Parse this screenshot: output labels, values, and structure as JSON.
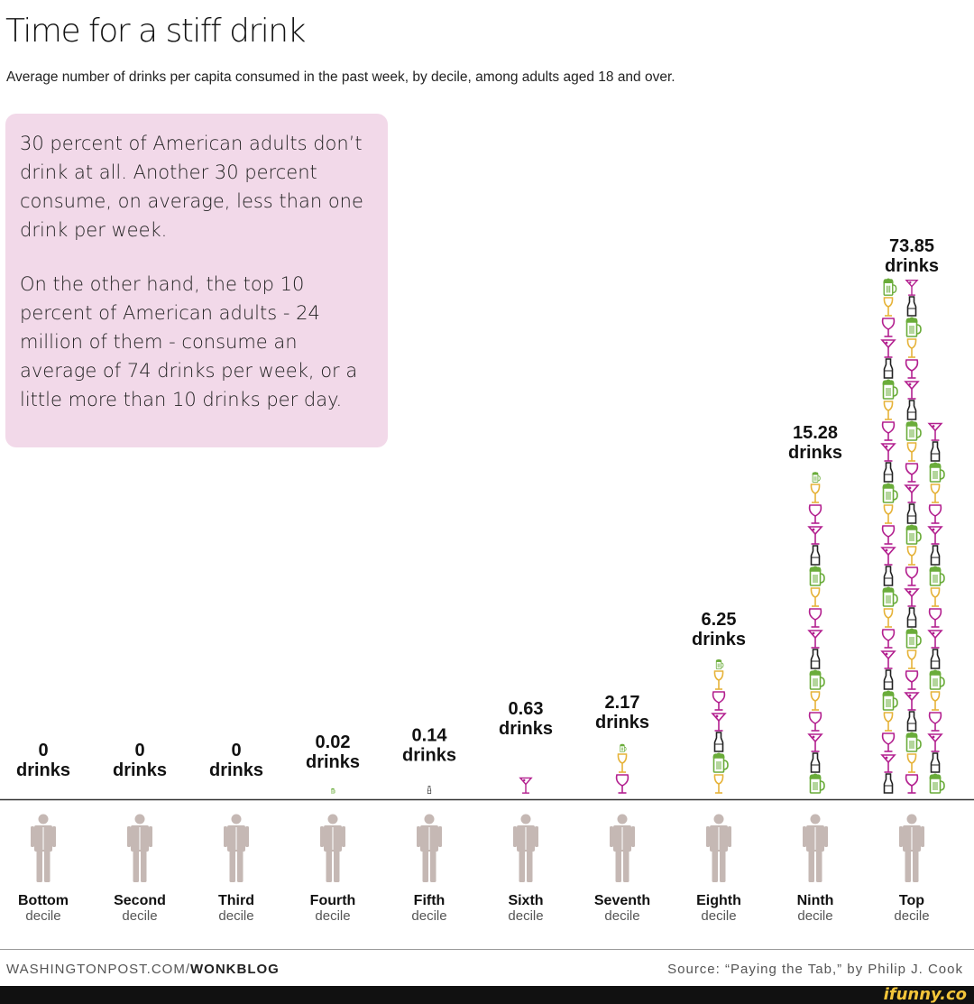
{
  "header": {
    "title": "Time for a stiff drink",
    "subtitle": "Average number of drinks per capita consumed in the past week, by decile, among adults aged 18 and over."
  },
  "callout": {
    "paragraph1": "30 percent of American adults don’t drink at all. Another 30 percent consume, on average, less than one drink per week.",
    "paragraph2": "On the other hand, the top 10 percent of American adults - 24 million of them - consume an average of 74 drinks per week, or a little more than 10 drinks per day."
  },
  "chart_data": {
    "type": "bar",
    "title": "Time for a stiff drink",
    "categories": [
      "Bottom decile",
      "Second decile",
      "Third decile",
      "Fourth decile",
      "Fifth decile",
      "Sixth decile",
      "Seventh decile",
      "Eighth decile",
      "Ninth decile",
      "Top decile"
    ],
    "values": [
      0,
      0,
      0,
      0.02,
      0.14,
      0.63,
      2.17,
      6.25,
      15.28,
      73.85
    ],
    "value_labels": [
      "0",
      "0",
      "0",
      "0.02",
      "0.14",
      "0.63",
      "2.17",
      "6.25",
      "15.28",
      "73.85"
    ],
    "unit_label": "drinks",
    "decile_names": [
      "Bottom",
      "Second",
      "Third",
      "Fourth",
      "Fifth",
      "Sixth",
      "Seventh",
      "Eighth",
      "Ninth",
      "Top"
    ],
    "decile_word": "decile",
    "mark": "stacked drink glyphs (bottle, beer mug, wine glass, martini)",
    "ylabel": "",
    "xlabel": ""
  },
  "colors": {
    "bottle": "#222222",
    "beer": "#6aac3a",
    "wine": "#b3208f",
    "martini": "#b3208f",
    "glass_yellow": "#e6b33a",
    "person": "#c5b8b4",
    "callout_bg": "#f2d9e9"
  },
  "footer": {
    "site": "WASHINGTONPOST.COM/",
    "blog": "WONKBLOG",
    "source": "Source: “Paying the Tab,” by Philip J. Cook"
  },
  "brand": "ifunny.co"
}
